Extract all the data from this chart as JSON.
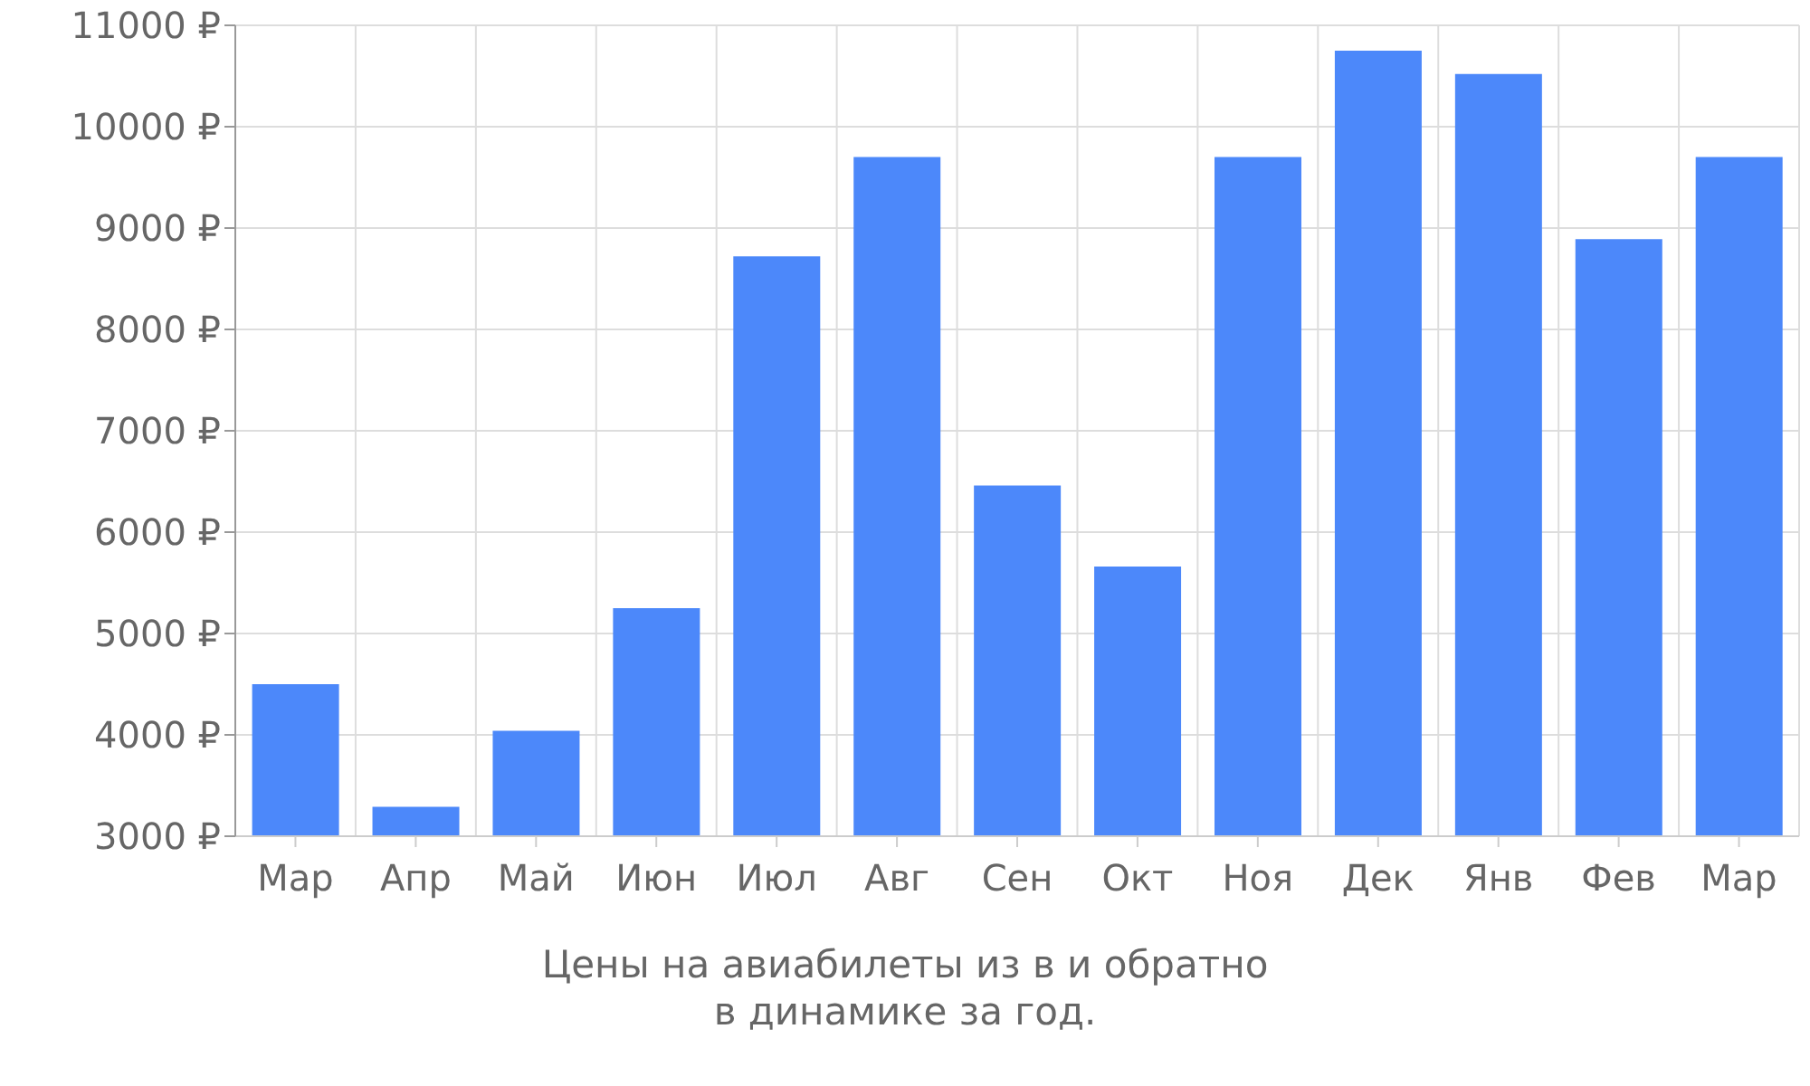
{
  "chart_data": {
    "type": "bar",
    "categories": [
      "Мар",
      "Апр",
      "Май",
      "Июн",
      "Июл",
      "Авг",
      "Сен",
      "Окт",
      "Ноя",
      "Дек",
      "Янв",
      "Фев",
      "Мар"
    ],
    "values": [
      4500,
      3290,
      4040,
      5250,
      8720,
      9700,
      6460,
      5660,
      9700,
      10750,
      10520,
      8890,
      9700
    ],
    "color": "#4c88fa",
    "ylim": [
      3000,
      11000
    ],
    "yticks": [
      {
        "value": 3000,
        "label": "3000 ₽"
      },
      {
        "value": 4000,
        "label": "4000 ₽"
      },
      {
        "value": 5000,
        "label": "5000 ₽"
      },
      {
        "value": 6000,
        "label": "6000 ₽"
      },
      {
        "value": 7000,
        "label": "7000 ₽"
      },
      {
        "value": 8000,
        "label": "8000 ₽"
      },
      {
        "value": 9000,
        "label": "9000 ₽"
      },
      {
        "value": 10000,
        "label": "10000 ₽"
      },
      {
        "value": 11000,
        "label": "11000 ₽"
      }
    ],
    "grid": true,
    "annotations": [
      "Цены на авиабилеты из  в  и обратно",
      "в динамике за год."
    ]
  }
}
